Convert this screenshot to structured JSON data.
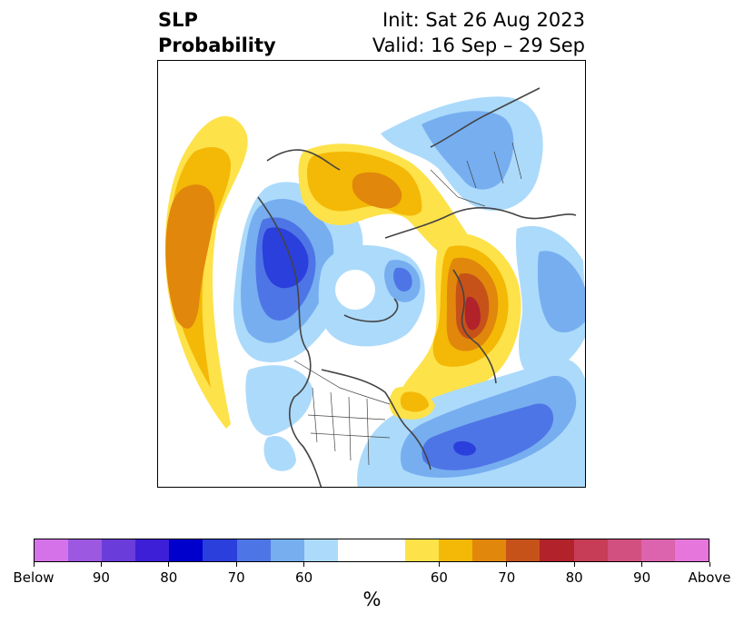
{
  "title": {
    "left_line1": "SLP",
    "left_line2": "Probability",
    "right_line1": "Init: Sat 26 Aug 2023",
    "right_line2": "Valid: 16 Sep – 29 Sep"
  },
  "colorbar": {
    "colors": [
      "#d672e9",
      "#9d58e1",
      "#6a3cd9",
      "#3c1fd6",
      "#0000cc",
      "#2b3fdc",
      "#4e75e6",
      "#76aef0",
      "#acdafb",
      "#ffffff",
      "#ffffff",
      "#fde24a",
      "#f4b806",
      "#e0870c",
      "#c65219",
      "#b1222a",
      "#c73c56",
      "#d2507f",
      "#dc63ad",
      "#e676db"
    ],
    "labels": [
      "Below",
      "90",
      "80",
      "70",
      "60",
      "60",
      "70",
      "80",
      "90",
      "Above"
    ],
    "unit": "%"
  },
  "palette": {
    "yellow": "#fde24a",
    "gold": "#f4b806",
    "orange": "#e0870c",
    "dark_orange": "#c65219",
    "red": "#b1222a",
    "pale_blue": "#acdafb",
    "light_blue": "#76aef0",
    "mid_blue": "#4e75e6",
    "deep_blue": "#2b3fdc",
    "coast": "#444444"
  }
}
